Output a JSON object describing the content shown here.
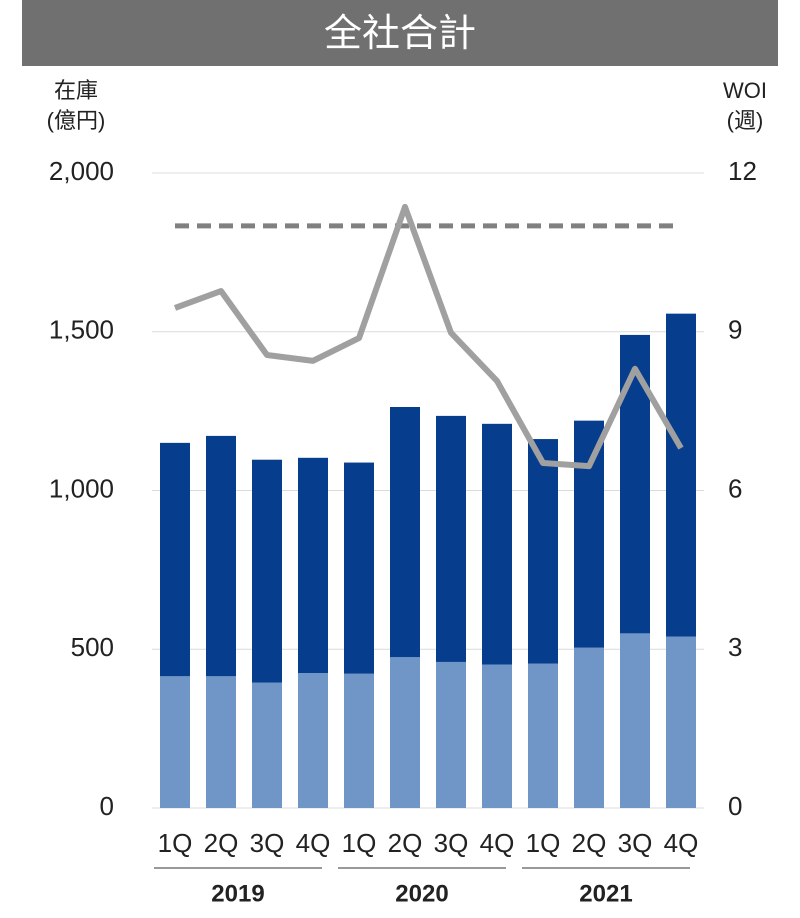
{
  "chart_data": {
    "type": "bar_line",
    "title": "全社合計",
    "y_label": [
      "在庫",
      "(億円)"
    ],
    "y2_label": [
      "WOI",
      "(週)"
    ],
    "categories": [
      "1Q",
      "2Q",
      "3Q",
      "4Q",
      "1Q",
      "2Q",
      "3Q",
      "4Q",
      "1Q",
      "2Q",
      "3Q",
      "4Q"
    ],
    "groups": [
      "2019",
      "2020",
      "2021"
    ],
    "series": [
      {
        "type": "bar",
        "color": "#7096c8",
        "values": [
          415,
          415,
          395,
          425,
          423,
          475,
          460,
          452,
          455,
          505,
          550,
          540
        ]
      },
      {
        "type": "bar",
        "color": "#063d8c",
        "values": [
          735,
          757,
          702,
          678,
          665,
          788,
          775,
          758,
          707,
          715,
          940,
          1017
        ]
      },
      {
        "type": "line",
        "axis": "y2",
        "color": "#a0a0a0",
        "values": [
          9.45,
          9.77,
          8.56,
          8.45,
          8.88,
          11.36,
          8.98,
          8.07,
          6.52,
          6.46,
          8.3,
          6.8
        ]
      }
    ],
    "reference_line": {
      "axis": "y2",
      "value": 11,
      "color": "#808080",
      "dashed": true
    },
    "ylim": [
      0,
      2000
    ],
    "yticks": [
      0,
      500,
      {
        "value": 1000,
        "label": "1,000"
      },
      {
        "value": 1500,
        "label": "1,500"
      },
      {
        "value": 2000,
        "label": "2,000"
      }
    ],
    "y2lim": [
      0,
      12
    ],
    "y2ticks": [
      0,
      3,
      6,
      9,
      12
    ],
    "grid": true
  }
}
